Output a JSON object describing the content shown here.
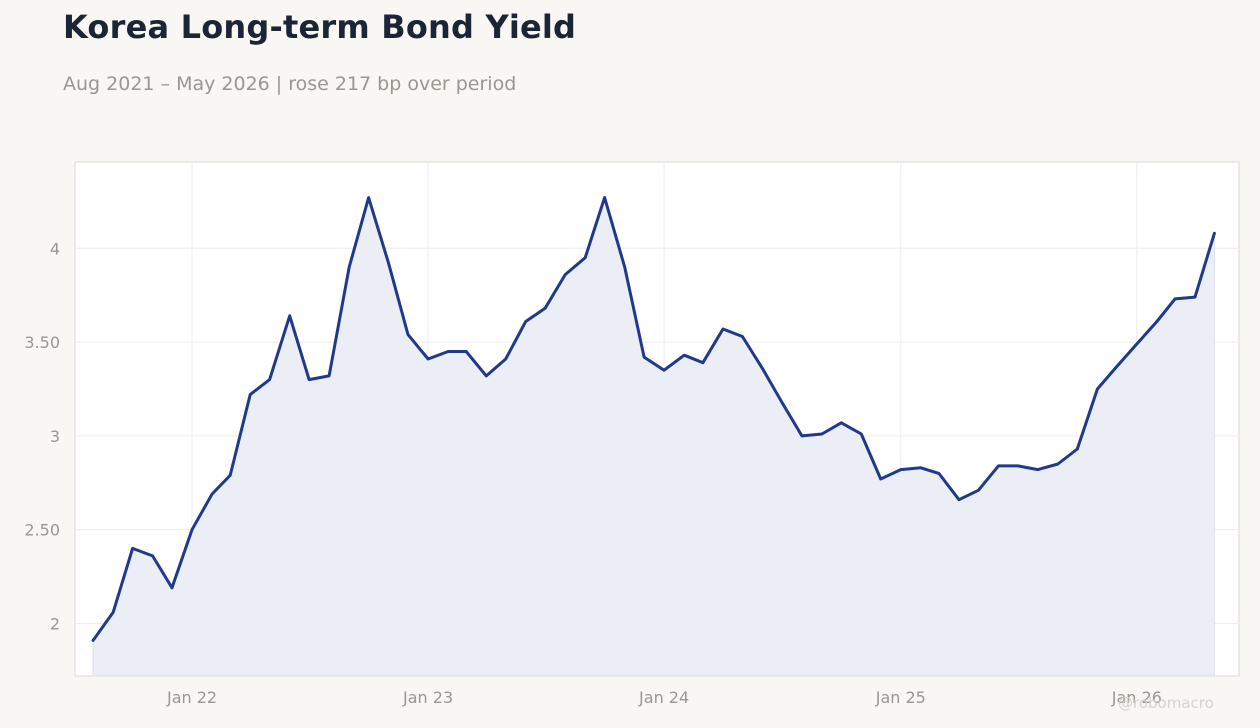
{
  "header": {
    "title": "Korea Long-term Bond Yield",
    "subtitle": "Aug 2021 – May 2026 | rose 217 bp over period"
  },
  "watermark": "@robomacro",
  "colors": {
    "line": "#1f3a8a",
    "fill": "#eceef5",
    "grid": "#ececef",
    "tick_label": "#9a9690",
    "frame": "#dcd9d3"
  },
  "chart_data": {
    "type": "area",
    "title": "Korea Long-term Bond Yield",
    "subtitle": "Aug 2021 – May 2026 | rose 217 bp over period",
    "xlabel": "",
    "ylabel": "",
    "grid": true,
    "ylim": [
      1.72,
      4.46
    ],
    "xlim": [
      "2021-07-04",
      "2026-06-08"
    ],
    "y_ticks": [
      {
        "value": 2,
        "label": "2"
      },
      {
        "value": 2.5,
        "label": "2.50"
      },
      {
        "value": 3,
        "label": "3"
      },
      {
        "value": 3.5,
        "label": "3.50"
      },
      {
        "value": 4,
        "label": "4"
      }
    ],
    "x_ticks": [
      {
        "value": "2022-01-01",
        "label": "Jan 22"
      },
      {
        "value": "2023-01-01",
        "label": "Jan 23"
      },
      {
        "value": "2024-01-01",
        "label": "Jan 24"
      },
      {
        "value": "2025-01-01",
        "label": "Jan 25"
      },
      {
        "value": "2026-01-01",
        "label": "Jan 26"
      }
    ],
    "series": [
      {
        "x": [
          "2021-08",
          "2021-09",
          "2021-10",
          "2021-11",
          "2021-12",
          "2022-01",
          "2022-02",
          "2022-03",
          "2022-04",
          "2022-05",
          "2022-06",
          "2022-07",
          "2022-08",
          "2022-09",
          "2022-10",
          "2022-11",
          "2022-12",
          "2023-01",
          "2023-02",
          "2023-03",
          "2023-04",
          "2023-05",
          "2023-06",
          "2023-07",
          "2023-08",
          "2023-09",
          "2023-10",
          "2023-11",
          "2023-12",
          "2024-01",
          "2024-02",
          "2024-03",
          "2024-04",
          "2024-05",
          "2024-06",
          "2024-07",
          "2024-08",
          "2024-09",
          "2024-10",
          "2024-11",
          "2024-12",
          "2025-01",
          "2025-02",
          "2025-03",
          "2025-04",
          "2025-05",
          "2025-06",
          "2025-07",
          "2025-08",
          "2025-09",
          "2025-10",
          "2025-11",
          "2025-12",
          "2026-01",
          "2026-02",
          "2026-03",
          "2026-04",
          "2026-05"
        ],
        "values": [
          1.91,
          2.06,
          2.4,
          2.36,
          2.19,
          2.5,
          2.69,
          2.79,
          3.22,
          3.3,
          3.64,
          3.3,
          3.32,
          3.9,
          4.27,
          3.92,
          3.54,
          3.41,
          3.45,
          3.45,
          3.32,
          3.41,
          3.61,
          3.68,
          3.86,
          3.95,
          4.27,
          3.9,
          3.42,
          3.35,
          3.43,
          3.39,
          3.57,
          3.53,
          3.36,
          3.18,
          3.0,
          3.01,
          3.07,
          3.01,
          2.77,
          2.82,
          2.83,
          2.8,
          2.66,
          2.71,
          2.84,
          2.84,
          2.82,
          2.85,
          2.93,
          3.25,
          3.37,
          3.49,
          3.61,
          3.73,
          3.74,
          4.08
        ]
      }
    ]
  }
}
